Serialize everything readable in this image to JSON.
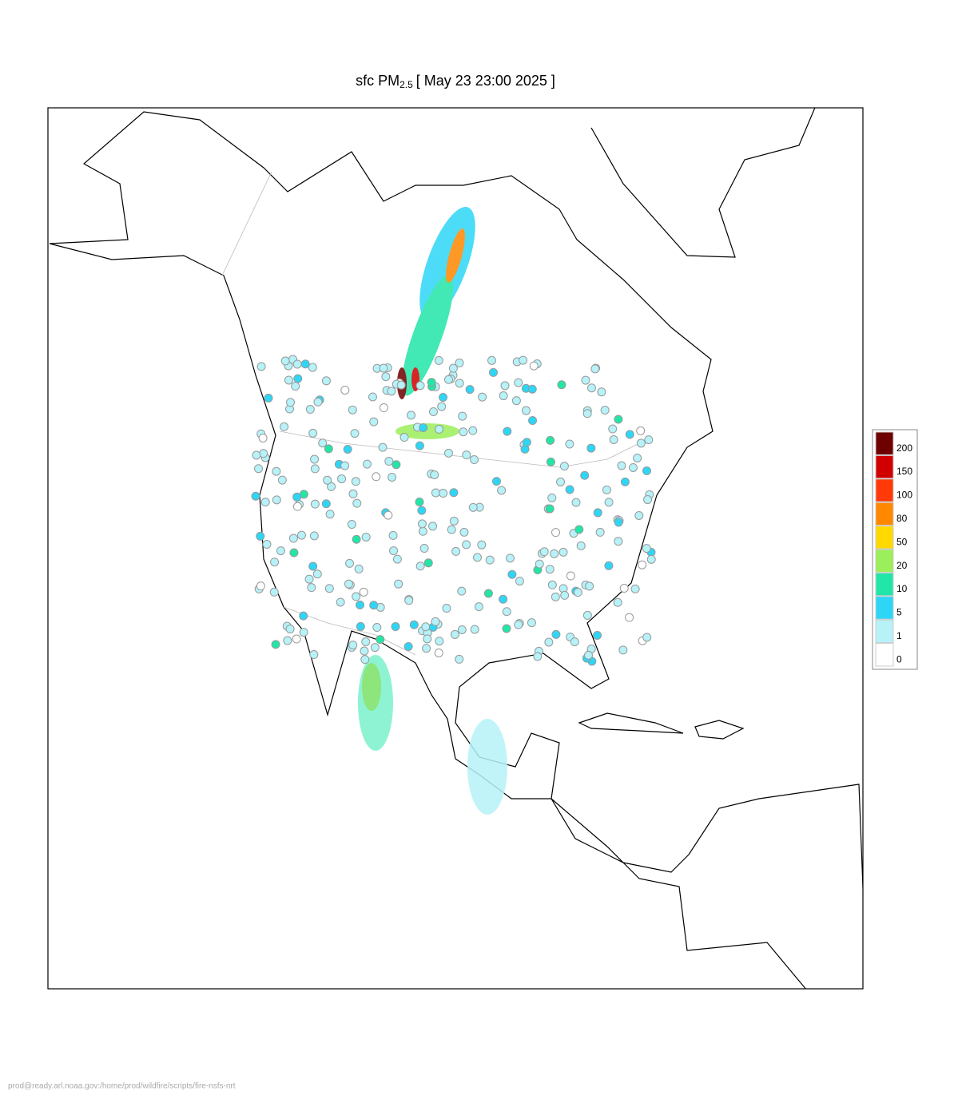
{
  "title": {
    "prefix": "sfc PM",
    "subscript": "2.5",
    "suffix": "[ May 23 23:00 2025 ]"
  },
  "legend": {
    "ticks": [
      0,
      1,
      5,
      10,
      20,
      50,
      80,
      100,
      150,
      200
    ],
    "colors": [
      "#ffffff",
      "#b6f2f8",
      "#2ed6f6",
      "#22e6a8",
      "#9bef5a",
      "#ffd900",
      "#ff8800",
      "#ff3a08",
      "#d10000",
      "#6e0000"
    ]
  },
  "footer": "prod@ready.arl.noaa.gov:/home/prod/wildfire/scripts/fire-nsfs-nrt"
}
